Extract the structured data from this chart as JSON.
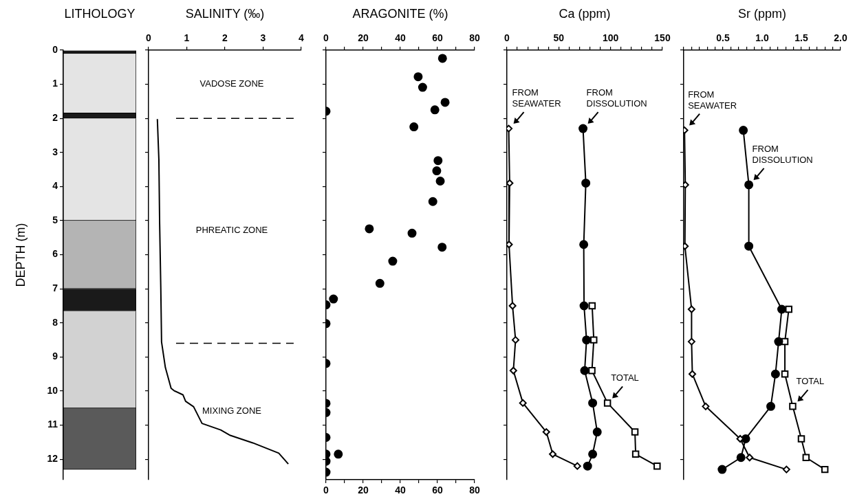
{
  "chart_data": [
    {
      "type": "bar",
      "title": "LITHOLOGY",
      "ylabel": "DEPTH (m)",
      "categories": [
        null
      ],
      "stacked": true,
      "ylim": [
        12.6,
        0
      ],
      "yticks": [
        0,
        1,
        2,
        3,
        4,
        5,
        6,
        7,
        8,
        9,
        10,
        11,
        12
      ],
      "tick_labels": "y",
      "legend": false,
      "series": [
        {
          "color": "#1a1a1a",
          "values": [
            0.1
          ]
        },
        {
          "color": "#e4e4e4",
          "values": [
            1.75
          ]
        },
        {
          "color": "#1a1a1a",
          "values": [
            0.15
          ]
        },
        {
          "color": "#e4e4e4",
          "values": [
            3.0
          ]
        },
        {
          "color": "#b4b4b4",
          "values": [
            2.0
          ]
        },
        {
          "color": "#1a1a1a",
          "values": [
            0.65
          ]
        },
        {
          "color": "#d2d2d2",
          "values": [
            2.85
          ]
        },
        {
          "color": "#5a5a5a",
          "values": [
            1.8
          ]
        }
      ]
    },
    {
      "type": "line",
      "title": "SALINITY (‰)",
      "xlim": [
        0,
        4
      ],
      "xticks": [
        0,
        1,
        2,
        3,
        4
      ],
      "ylim": [
        12.6,
        0
      ],
      "yticks": [
        0,
        1,
        2,
        3,
        4,
        5,
        6,
        7,
        8,
        9,
        10,
        11,
        12
      ],
      "tick_labels": "x",
      "legend": false,
      "marker": "none",
      "series": [
        {
          "color": "#000000",
          "x": [
            0.23,
            0.27,
            0.29,
            0.32,
            0.34,
            0.44,
            0.59,
            0.67,
            0.9,
            0.97,
            1.18,
            1.4,
            1.89,
            2.14,
            2.73,
            3.41,
            3.66
          ],
          "values": [
            2.02,
            3.22,
            5.09,
            6.97,
            8.56,
            9.31,
            9.92,
            9.99,
            10.11,
            10.3,
            10.46,
            10.95,
            11.14,
            11.3,
            11.52,
            11.82,
            12.14
          ]
        }
      ],
      "ref_lines": [
        {
          "axis": "y",
          "value": 2,
          "line_style": "dashed",
          "color": "#000000"
        },
        {
          "axis": "y",
          "value": 8.6,
          "line_style": "dashed",
          "color": "#000000"
        }
      ],
      "annotations": [
        "VADOSE ZONE",
        "PHREATIC ZONE",
        "MIXING ZONE"
      ]
    },
    {
      "type": "scatter",
      "title": "ARAGONITE (%)",
      "xlim": [
        0,
        80
      ],
      "xticks": [
        0,
        {
          "value": 10,
          "label": null
        },
        20,
        {
          "value": 30,
          "label": null
        },
        40,
        {
          "value": 50,
          "label": null
        },
        60,
        {
          "value": 70,
          "label": null
        },
        80
      ],
      "x2lim": [
        0,
        80
      ],
      "x2ticks": [
        0,
        {
          "value": 10,
          "label": null
        },
        20,
        {
          "value": 30,
          "label": null
        },
        40,
        {
          "value": 50,
          "label": null
        },
        60,
        {
          "value": 70,
          "label": null
        },
        80
      ],
      "ylim": [
        12.6,
        0
      ],
      "yticks": [
        0,
        1,
        2,
        3,
        4,
        5,
        6,
        7,
        8,
        9,
        10,
        11,
        12
      ],
      "tick_labels": "x",
      "legend": false,
      "marker": "circle",
      "series": [
        {
          "color": "#000000",
          "x": [
            62.7,
            49.6,
            52.0,
            64.1,
            58.6,
            0,
            47.3,
            60.3,
            59.6,
            61.5,
            57.5,
            23.3,
            46.3,
            62.5,
            35.9,
            29.0,
            4.0,
            0,
            0,
            0,
            0,
            0,
            0,
            0,
            6.6,
            0,
            0
          ],
          "values": [
            0.24,
            0.78,
            1.09,
            1.53,
            1.75,
            1.79,
            2.25,
            3.24,
            3.54,
            3.84,
            4.44,
            5.24,
            5.37,
            5.78,
            6.19,
            6.84,
            7.3,
            7.47,
            8.02,
            9.19,
            10.36,
            10.63,
            11.36,
            11.85,
            11.85,
            12.06,
            12.38
          ]
        }
      ]
    },
    {
      "type": "line",
      "title": "Ca (ppm)",
      "xlim": [
        0,
        150
      ],
      "xticks": [
        0,
        {
          "value": 10,
          "label": null
        },
        {
          "value": 20,
          "label": null
        },
        {
          "value": 30,
          "label": null
        },
        {
          "value": 40,
          "label": null
        },
        50,
        {
          "value": 60,
          "label": null
        },
        {
          "value": 70,
          "label": null
        },
        {
          "value": 80,
          "label": null
        },
        {
          "value": 90,
          "label": null
        },
        100,
        {
          "value": 110,
          "label": null
        },
        {
          "value": 120,
          "label": null
        },
        {
          "value": 130,
          "label": null
        },
        {
          "value": 140,
          "label": null
        },
        150
      ],
      "ylim": [
        12.6,
        0
      ],
      "yticks": [
        0,
        1,
        2,
        3,
        4,
        5,
        6,
        7,
        8,
        9,
        10,
        11,
        12
      ],
      "tick_labels": "x",
      "legend": false,
      "series": [
        {
          "color": "#000000",
          "marker": "diamond",
          "x": [
            1.7,
            2.6,
            2,
            5.4,
            8.3,
            6.2,
            15.4,
            38,
            44.2,
            67.9
          ],
          "values": [
            2.3,
            3.9,
            5.7,
            7.5,
            8.5,
            9.4,
            10.35,
            11.2,
            11.85,
            12.2
          ]
        },
        {
          "color": "#000000",
          "marker": "circle",
          "x": [
            73.4,
            76.1,
            74.1,
            74.4,
            76.8,
            75,
            82.7,
            87.1,
            82.7,
            77.8
          ],
          "values": [
            2.3,
            3.9,
            5.7,
            7.5,
            8.5,
            9.4,
            10.35,
            11.2,
            11.85,
            12.2
          ]
        },
        {
          "color": "#000000",
          "marker": "square",
          "x": [
            82.2,
            83.8,
            82,
            97,
            123.5,
            124.2,
            144.9
          ],
          "values": [
            7.5,
            8.5,
            9.4,
            10.35,
            11.2,
            11.85,
            12.2
          ]
        }
      ],
      "annotations": [
        {
          "text": "FROM SEAWATER",
          "x": 1.7,
          "y": 2.3
        },
        {
          "text": "FROM DISSOLUTION",
          "x": 73.4,
          "y": 2.3
        },
        {
          "text": "TOTAL",
          "x": 97,
          "y": 10.35
        }
      ]
    },
    {
      "type": "line",
      "title": "Sr (ppm)",
      "xlim": [
        0,
        2
      ],
      "xticks": [
        {
          "value": 0,
          "label": null
        },
        {
          "value": 0.1,
          "label": null
        },
        {
          "value": 0.2,
          "label": null
        },
        {
          "value": 0.3,
          "label": null
        },
        {
          "value": 0.4,
          "label": null
        },
        0.5,
        {
          "value": 0.6,
          "label": null
        },
        {
          "value": 0.7,
          "label": null
        },
        {
          "value": 0.8,
          "label": null
        },
        {
          "value": 0.9,
          "label": null
        },
        {
          "value": 1,
          "label": "1.0"
        },
        {
          "value": 1.1,
          "label": null
        },
        {
          "value": 1.2,
          "label": null
        },
        {
          "value": 1.3,
          "label": null
        },
        {
          "value": 1.4,
          "label": null
        },
        1.5,
        {
          "value": 1.6,
          "label": null
        },
        {
          "value": 1.7,
          "label": null
        },
        {
          "value": 1.8,
          "label": null
        },
        {
          "value": 1.9,
          "label": null
        },
        {
          "value": 2,
          "label": "2.0"
        }
      ],
      "ylim": [
        12.6,
        0
      ],
      "yticks": [
        0,
        1,
        2,
        3,
        4,
        5,
        6,
        7,
        8,
        9,
        10,
        11,
        12
      ],
      "tick_labels": "x",
      "legend": false,
      "series": [
        {
          "color": "#000000",
          "marker": "diamond",
          "x": [
            0.01,
            0.02,
            0.015,
            0.1,
            0.1,
            0.11,
            0.28,
            0.72,
            0.84,
            1.31
          ],
          "values": [
            2.35,
            3.95,
            5.75,
            7.6,
            8.55,
            9.5,
            10.45,
            11.4,
            11.95,
            12.3
          ]
        },
        {
          "color": "#000000",
          "marker": "circle",
          "x": [
            0.76,
            0.83,
            0.83,
            1.25,
            1.21,
            1.17,
            1.11,
            0.79,
            0.73,
            0.49
          ],
          "values": [
            2.35,
            3.95,
            5.75,
            7.6,
            8.55,
            9.5,
            10.45,
            11.4,
            11.95,
            12.3
          ]
        },
        {
          "color": "#000000",
          "marker": "square",
          "x": [
            1.34,
            1.29,
            1.29,
            1.39,
            1.5,
            1.56,
            1.8
          ],
          "values": [
            7.6,
            8.55,
            9.5,
            10.45,
            11.4,
            11.95,
            12.3
          ]
        }
      ],
      "annotations": [
        {
          "text": "FROM SEAWATER",
          "x": 0.01,
          "y": 2.35
        },
        {
          "text": "FROM DISSOLUTION",
          "x": 0.83,
          "y": 3.95
        },
        {
          "text": "TOTAL",
          "x": 1.39,
          "y": 10.45
        }
      ]
    }
  ]
}
